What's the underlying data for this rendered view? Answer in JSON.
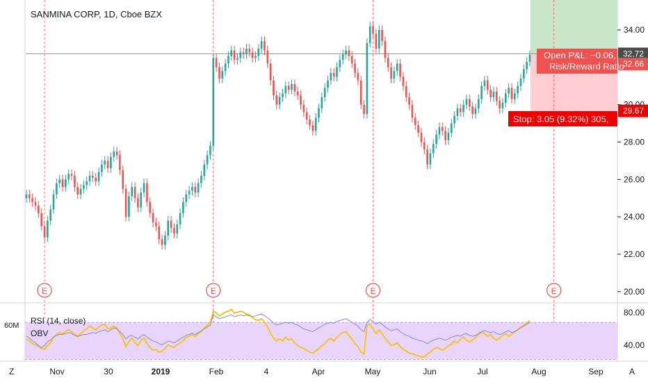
{
  "header": {
    "title": "SANMINA CORP, 1D, Cboe BZX"
  },
  "colors": {
    "up": "#26a69a",
    "down": "#ef5350",
    "rsi_line": "#7e8fc9",
    "obv_line": "#f5c518",
    "rsi_band": "#e9d5fb",
    "profit_zone": "#c8e6c9",
    "stop_zone": "#ffcdd2",
    "earnings": "#ef5350",
    "price_line": "#26c6da"
  },
  "price_axis": {
    "ticks": [
      "34.00",
      "32.00",
      "30.00",
      "28.00",
      "26.00",
      "24.00",
      "22.00",
      "20.00"
    ],
    "tags": {
      "entry": "32.72",
      "last": "32.66",
      "stop": "29.67"
    }
  },
  "rsi_panel": {
    "title": "RSI (14, close)",
    "obv_title": "OBV",
    "left_tick": "60M",
    "right_ticks": [
      "80.00",
      "40.00"
    ]
  },
  "time_axis": {
    "labels": [
      "Nov",
      "30",
      "2019",
      "Feb",
      "4",
      "Apr",
      "May",
      "Jun",
      "Jul",
      "Aug",
      "Sep"
    ],
    "corner_left": "Z",
    "corner_right": "A"
  },
  "earnings_markers": [
    "E",
    "E",
    "E",
    "E"
  ],
  "position": {
    "pnl_text": "Open P&L: −0.06,",
    "rr_text": "Risk/Reward Ratio",
    "stop_text": "Stop: 3.05 (9.32%) 305, "
  },
  "chart_data": {
    "type": "candlestick",
    "title": "SANMINA CORP, 1D, Cboe BZX",
    "ylim": [
      19.4,
      35.6
    ],
    "yticks": [
      20,
      22,
      24,
      26,
      28,
      30,
      32,
      34
    ],
    "entry_price": 32.72,
    "last_price": 32.66,
    "stop_price": 29.67,
    "closes": [
      25.2,
      25.0,
      24.8,
      24.6,
      24.2,
      23.5,
      22.9,
      23.8,
      24.4,
      25.2,
      25.8,
      26.0,
      25.6,
      26.0,
      26.3,
      26.2,
      25.6,
      25.2,
      25.5,
      25.7,
      25.9,
      26.2,
      26.1,
      25.9,
      26.4,
      26.8,
      27.0,
      26.6,
      27.2,
      27.5,
      27.3,
      26.5,
      25.5,
      24.0,
      25.1,
      25.6,
      25.0,
      24.5,
      25.3,
      25.8,
      24.8,
      24.2,
      23.7,
      23.5,
      22.8,
      22.5,
      23.0,
      23.8,
      23.4,
      23.1,
      23.6,
      24.2,
      24.8,
      25.2,
      25.4,
      25.6,
      25.3,
      25.8,
      26.2,
      26.8,
      27.3,
      27.8,
      32.5,
      32.0,
      31.4,
      31.8,
      32.2,
      32.6,
      32.9,
      32.4,
      32.5,
      32.8,
      32.7,
      33.0,
      32.8,
      32.5,
      32.6,
      33.0,
      33.4,
      32.9,
      32.2,
      31.3,
      30.5,
      30.0,
      30.4,
      30.6,
      31.0,
      30.8,
      31.1,
      30.7,
      30.5,
      30.0,
      29.6,
      29.2,
      28.9,
      28.6,
      29.3,
      29.8,
      30.4,
      30.9,
      31.3,
      31.7,
      31.5,
      32.0,
      32.4,
      32.7,
      32.9,
      32.6,
      32.2,
      31.7,
      31.3,
      30.0,
      29.5,
      33.3,
      34.2,
      33.8,
      33.0,
      34.0,
      33.4,
      32.5,
      32.0,
      31.4,
      31.8,
      32.2,
      31.5,
      31.0,
      30.4,
      30.0,
      29.3,
      28.9,
      28.5,
      28.0,
      27.6,
      26.8,
      27.4,
      27.9,
      28.4,
      28.8,
      28.6,
      28.1,
      28.5,
      29.0,
      29.4,
      29.8,
      29.6,
      30.0,
      30.3,
      29.9,
      29.5,
      29.8,
      30.3,
      31.0,
      31.3,
      30.8,
      30.4,
      30.7,
      30.2,
      29.8,
      30.1,
      30.6,
      30.9,
      30.3,
      30.6,
      31.0,
      31.4,
      31.9,
      32.3,
      32.66
    ],
    "rsi": {
      "values": [
        55,
        53,
        50,
        48,
        45,
        43,
        45,
        49,
        51,
        54,
        56,
        57,
        57,
        58,
        59,
        58,
        56,
        55,
        56,
        57,
        57,
        58,
        59,
        58,
        60,
        61,
        62,
        60,
        62,
        64,
        63,
        60,
        57,
        52,
        55,
        56,
        54,
        52,
        55,
        57,
        54,
        52,
        50,
        49,
        47,
        46,
        48,
        50,
        49,
        48,
        50,
        52,
        54,
        56,
        57,
        58,
        57,
        59,
        61,
        63,
        65,
        67,
        78,
        76,
        74,
        75,
        76,
        77,
        78,
        76,
        77,
        78,
        77,
        78,
        77,
        76,
        77,
        78,
        79,
        77,
        75,
        72,
        69,
        67,
        68,
        69,
        70,
        69,
        70,
        68,
        67,
        65,
        63,
        62,
        61,
        60,
        62,
        64,
        66,
        68,
        69,
        70,
        69,
        71,
        72,
        73,
        74,
        72,
        70,
        68,
        66,
        62,
        60,
        70,
        73,
        71,
        68,
        70,
        68,
        65,
        63,
        61,
        62,
        63,
        60,
        58,
        56,
        55,
        53,
        52,
        51,
        50,
        49,
        47,
        49,
        51,
        52,
        53,
        52,
        51,
        52,
        54,
        55,
        56,
        55,
        57,
        58,
        56,
        55,
        56,
        58,
        60,
        61,
        60,
        59,
        60,
        58,
        57,
        58,
        60,
        61,
        59,
        60,
        62,
        64,
        66,
        68,
        70
      ],
      "ylim": [
        32,
        88
      ]
    },
    "obv": {
      "values": [
        52,
        50,
        47,
        46,
        44,
        42,
        41,
        45,
        48,
        54,
        57,
        59,
        58,
        60,
        62,
        60,
        57,
        55,
        58,
        61,
        63,
        66,
        64,
        62,
        65,
        67,
        68,
        63,
        64,
        66,
        64,
        58,
        52,
        44,
        49,
        53,
        48,
        45,
        50,
        53,
        47,
        43,
        40,
        41,
        38,
        39,
        42,
        46,
        44,
        43,
        46,
        48,
        50,
        54,
        55,
        57,
        55,
        58,
        60,
        64,
        67,
        70,
        82,
        80,
        77,
        79,
        81,
        82,
        84,
        80,
        81,
        82,
        81,
        79,
        78,
        75,
        73,
        72,
        74,
        70,
        65,
        58,
        53,
        50,
        52,
        50,
        54,
        51,
        52,
        48,
        45,
        43,
        42,
        40,
        38,
        37,
        39,
        42,
        45,
        47,
        51,
        53,
        50,
        54,
        57,
        59,
        60,
        56,
        52,
        47,
        44,
        38,
        36,
        67,
        68,
        63,
        58,
        62,
        58,
        53,
        49,
        45,
        46,
        48,
        44,
        41,
        39,
        37,
        36,
        35,
        34,
        33,
        33,
        36,
        38,
        41,
        43,
        42,
        40,
        42,
        45,
        47,
        50,
        48,
        52,
        54,
        51,
        49,
        51,
        54,
        57,
        59,
        58,
        55,
        57,
        53,
        51,
        53,
        56,
        58,
        55,
        57,
        60,
        62,
        65,
        67,
        69,
        72
      ],
      "ylim": [
        32,
        88
      ]
    },
    "earnings_indices": [
      6,
      62,
      115,
      175
    ],
    "x_labels": [
      "Nov",
      "30",
      "2019",
      "Feb",
      "4",
      "Apr",
      "May",
      "Jun",
      "Jul",
      "Aug",
      "Sep"
    ],
    "rsi_band": [
      30,
      70
    ],
    "rsi_ticks": [
      80,
      40
    ]
  }
}
